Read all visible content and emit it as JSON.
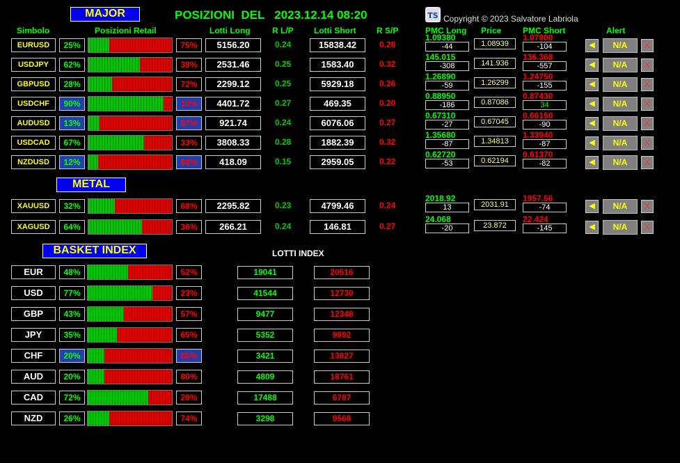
{
  "header": {
    "title": "POSIZIONI  DEL   2023.12.14 08:20",
    "copyright": "Copyright © 2023 Salvatore Labriola",
    "logo_text": "TS"
  },
  "sections": {
    "major": "MAJOR",
    "metal": "METAL",
    "basket": "BASKET INDEX",
    "lotti_index": "LOTTI INDEX"
  },
  "columns": {
    "simbolo": "Simbolo",
    "posizioni": "Posizioni Retail",
    "lotti_long": "Lotti Long",
    "rlp": "R L/P",
    "lotti_short": "Lotti Short",
    "rsp": "R S/P",
    "pmc_long": "PMC Long",
    "price": "Price",
    "pmc_short": "PMC Short",
    "alert": "Alert"
  },
  "major": [
    {
      "sym": "EURUSD",
      "long": "25%",
      "short": "75%",
      "lotti_long": "5156.20",
      "rlp": "0.24",
      "lotti_short": "15838.42",
      "rsp": "0.28",
      "pmc_long": "1.09380",
      "pmc_long_d": "-44",
      "price": "1.08939",
      "pmc_short": "1.07900",
      "pmc_short_d": "-104",
      "alert": "N/A",
      "long_pct": 25
    },
    {
      "sym": "USDJPY",
      "long": "62%",
      "short": "38%",
      "lotti_long": "2531.46",
      "rlp": "0.25",
      "lotti_short": "1583.40",
      "rsp": "0.32",
      "pmc_long": "145.015",
      "pmc_long_d": "-308",
      "price": "141.936",
      "pmc_short": "136.368",
      "pmc_short_d": "-557",
      "alert": "N/A",
      "long_pct": 62
    },
    {
      "sym": "GBPUSD",
      "long": "28%",
      "short": "72%",
      "lotti_long": "2299.12",
      "rlp": "0.25",
      "lotti_short": "5929.18",
      "rsp": "0.26",
      "pmc_long": "1.26890",
      "pmc_long_d": "-59",
      "price": "1.26299",
      "pmc_short": "1.24750",
      "pmc_short_d": "-155",
      "alert": "N/A",
      "long_pct": 28
    },
    {
      "sym": "USDCHF",
      "long": "90%",
      "short": "10%",
      "lotti_long": "4401.72",
      "rlp": "0.27",
      "lotti_short": "469.35",
      "rsp": "0.20",
      "pmc_long": "0.88950",
      "pmc_long_d": "-186",
      "price": "0.87086",
      "pmc_short": "0.87430",
      "pmc_short_d": "34",
      "alert": "N/A",
      "long_pct": 90
    },
    {
      "sym": "AUDUSD",
      "long": "13%",
      "short": "87%",
      "lotti_long": "921.74",
      "rlp": "0.24",
      "lotti_short": "6076.06",
      "rsp": "0.27",
      "pmc_long": "0.67310",
      "pmc_long_d": "-27",
      "price": "0.67045",
      "pmc_short": "0.66150",
      "pmc_short_d": "-90",
      "alert": "N/A",
      "long_pct": 13
    },
    {
      "sym": "USDCAD",
      "long": "67%",
      "short": "33%",
      "lotti_long": "3808.33",
      "rlp": "0.28",
      "lotti_short": "1882.39",
      "rsp": "0.32",
      "pmc_long": "1.35680",
      "pmc_long_d": "-87",
      "price": "1.34813",
      "pmc_short": "1.33940",
      "pmc_short_d": "-87",
      "alert": "N/A",
      "long_pct": 67
    },
    {
      "sym": "NZDUSD",
      "long": "12%",
      "short": "88%",
      "lotti_long": "418.09",
      "rlp": "0.15",
      "lotti_short": "2959.05",
      "rsp": "0.22",
      "pmc_long": "0.62720",
      "pmc_long_d": "-53",
      "price": "0.62194",
      "pmc_short": "0.61370",
      "pmc_short_d": "-82",
      "alert": "N/A",
      "long_pct": 12
    }
  ],
  "metal": [
    {
      "sym": "XAUUSD",
      "long": "32%",
      "short": "68%",
      "lotti_long": "2295.82",
      "rlp": "0.23",
      "lotti_short": "4799.46",
      "rsp": "0.24",
      "pmc_long": "2018.92",
      "pmc_long_d": "13",
      "price": "2031.91",
      "pmc_short": "1957.56",
      "pmc_short_d": "-74",
      "alert": "N/A",
      "long_pct": 32
    },
    {
      "sym": "XAGUSD",
      "long": "64%",
      "short": "36%",
      "lotti_long": "266.21",
      "rlp": "0.24",
      "lotti_short": "146.81",
      "rsp": "0.27",
      "pmc_long": "24.068",
      "pmc_long_d": "-20",
      "price": "23.872",
      "pmc_short": "22.424",
      "pmc_short_d": "-145",
      "alert": "N/A",
      "long_pct": 64
    }
  ],
  "basket": [
    {
      "sym": "EUR",
      "long": "48%",
      "short": "52%",
      "idx_long": "19041",
      "idx_short": "20516",
      "long_pct": 48
    },
    {
      "sym": "USD",
      "long": "77%",
      "short": "23%",
      "idx_long": "41544",
      "idx_short": "12730",
      "long_pct": 77
    },
    {
      "sym": "GBP",
      "long": "43%",
      "short": "57%",
      "idx_long": "9477",
      "idx_short": "12348",
      "long_pct": 43
    },
    {
      "sym": "JPY",
      "long": "35%",
      "short": "65%",
      "idx_long": "5352",
      "idx_short": "9892",
      "long_pct": 35
    },
    {
      "sym": "CHF",
      "long": "20%",
      "short": "80%",
      "idx_long": "3421",
      "idx_short": "13827",
      "long_pct": 20
    },
    {
      "sym": "AUD",
      "long": "20%",
      "short": "80%",
      "idx_long": "4809",
      "idx_short": "18761",
      "long_pct": 20
    },
    {
      "sym": "CAD",
      "long": "72%",
      "short": "28%",
      "idx_long": "17488",
      "idx_short": "6787",
      "long_pct": 72
    },
    {
      "sym": "NZD",
      "long": "26%",
      "short": "74%",
      "idx_long": "3298",
      "idx_short": "9568",
      "long_pct": 26
    }
  ],
  "highlighted_rows": {
    "major": [
      3,
      4,
      6
    ],
    "basket": [
      4
    ]
  },
  "colors": {
    "background": "#000000",
    "long": "#00ff00",
    "short": "#ff0000",
    "symbol": "#ffff00",
    "section_bg": "#0000ee"
  }
}
